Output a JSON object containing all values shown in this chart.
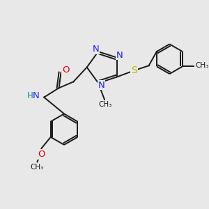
{
  "bg_color": "#e8e8e8",
  "bond_color": "#1a1a1a",
  "N_color": "#2020ff",
  "O_color": "#dd0000",
  "S_color": "#bbbb00",
  "H_color": "#008888",
  "fs": 8.5,
  "lw": 1.4,
  "figsize": [
    3.0,
    3.0
  ],
  "dpi": 100,
  "xlim": [
    0,
    10
  ],
  "ylim": [
    0,
    10
  ]
}
